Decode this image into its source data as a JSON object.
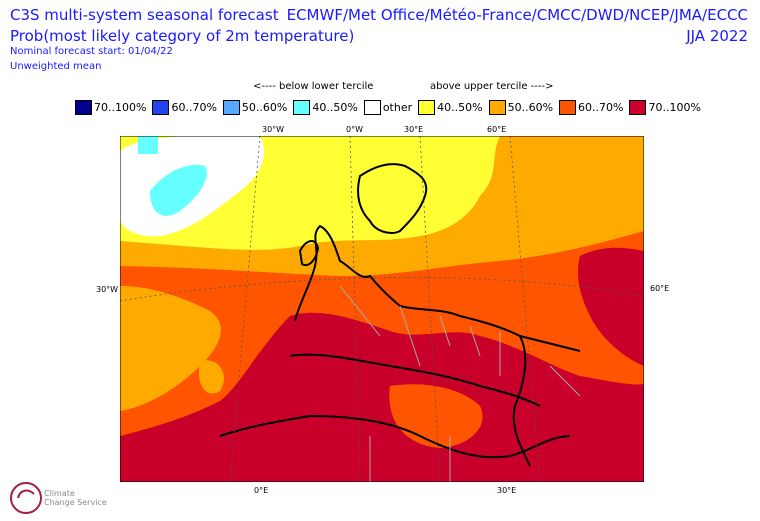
{
  "header": {
    "title_line1": "C3S multi-system seasonal forecast",
    "title_line2": "Prob(most likely category of 2m temperature)",
    "start": "Nominal forecast start: 01/04/22",
    "mean": "Unweighted mean",
    "provider": "ECMWF/Met Office/Météo-France/CMCC/DWD/NCEP/JMA/ECCC",
    "season": "JJA 2022"
  },
  "terciles": {
    "below": "<---- below lower tercile",
    "above": "above upper tercile ---->"
  },
  "legend": [
    {
      "label": "70..100%",
      "color": "#00008c"
    },
    {
      "label": "60..70%",
      "color": "#2244ee"
    },
    {
      "label": "50..60%",
      "color": "#55aaff"
    },
    {
      "label": "40..50%",
      "color": "#66ffff"
    },
    {
      "label": "other",
      "color": "#ffffff"
    },
    {
      "label": "40..50%",
      "color": "#ffff33"
    },
    {
      "label": "50..60%",
      "color": "#ffaa00"
    },
    {
      "label": "60..70%",
      "color": "#ff5500"
    },
    {
      "label": "70..100%",
      "color": "#c8002a"
    }
  ],
  "map": {
    "top_ticks": [
      "30°W",
      "0°W",
      "30°E",
      "60°E"
    ],
    "bottom_ticks": [
      "0°E",
      "30°E"
    ],
    "left_tick": "30°W",
    "right_tick": "60°E"
  },
  "logo": {
    "line1": "Climate",
    "line2": "Change Service"
  }
}
